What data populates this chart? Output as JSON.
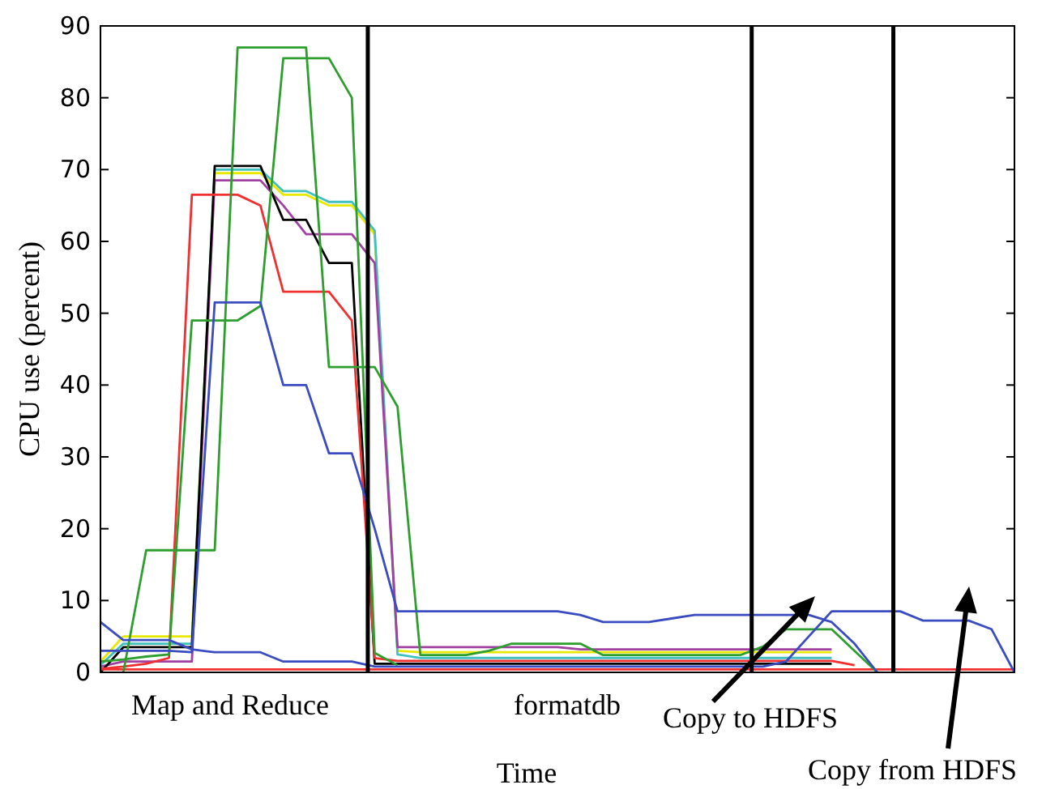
{
  "chart_data": {
    "type": "line",
    "xlabel": "Time",
    "ylabel": "CPU use (percent)",
    "categories": [
      null,
      null,
      null,
      null,
      null,
      null,
      null,
      null,
      null,
      null,
      null,
      null,
      null,
      null,
      null,
      null,
      null,
      null,
      null,
      null,
      null,
      null,
      null,
      null,
      null,
      null,
      null,
      null,
      null,
      null,
      null,
      null,
      null,
      null,
      null,
      null,
      null,
      null,
      null,
      null,
      null
    ],
    "ylim": [
      0,
      90
    ],
    "yticks": [
      0,
      10,
      20,
      30,
      40,
      50,
      60,
      70,
      80,
      90
    ],
    "grid": false,
    "marker": "none",
    "line_style": "solid",
    "series": [
      {
        "color": "#e8e800",
        "values": [
          1.5,
          5,
          5,
          5,
          5,
          69.5,
          69.5,
          69.5,
          66.5,
          66.5,
          65,
          65,
          61,
          3,
          2.8,
          2.8,
          2.8,
          2.8,
          2.8,
          2.8,
          2.8,
          2.8,
          2.8,
          2.8,
          2.8,
          2.8,
          2.8,
          2.8,
          2.8,
          2.8,
          2.8,
          2.8,
          2.8,
          null,
          null,
          null,
          null,
          null,
          null,
          null,
          null
        ]
      },
      {
        "color": "#40c0c0",
        "values": [
          1,
          4,
          4,
          4,
          4,
          70,
          70,
          70,
          67,
          67,
          65.5,
          65.5,
          61.5,
          2.5,
          2,
          2,
          2,
          2,
          2,
          2,
          2,
          2,
          2,
          2,
          2,
          2,
          2,
          2,
          2,
          2,
          2,
          2,
          2,
          null,
          null,
          null,
          null,
          null,
          null,
          null,
          null
        ]
      },
      {
        "color": "#a040a0",
        "values": [
          0.8,
          1.5,
          1.5,
          1.5,
          1.5,
          68.5,
          68.5,
          68.5,
          65,
          61,
          61,
          61,
          57,
          3.5,
          3.5,
          3.5,
          3.5,
          3.5,
          3.5,
          3.5,
          3.5,
          3.2,
          3.2,
          3.2,
          3.2,
          3.2,
          3.2,
          3.2,
          3.2,
          3.2,
          3.2,
          3.2,
          3.2,
          null,
          null,
          null,
          null,
          null,
          null,
          null,
          null
        ]
      },
      {
        "color": "#000000",
        "values": [
          0,
          3.5,
          3.5,
          3.5,
          3.5,
          70.5,
          70.5,
          70.5,
          63,
          63,
          57,
          57,
          1.2,
          1.2,
          1.2,
          1.2,
          1.2,
          1.2,
          1.2,
          1.2,
          1.2,
          1.2,
          1.2,
          1.2,
          1.2,
          1.2,
          1.2,
          1.2,
          1.2,
          1.2,
          1.2,
          1.2,
          1.2,
          null,
          null,
          null,
          null,
          null,
          null,
          null,
          null
        ]
      },
      {
        "color": "#f03030",
        "values": [
          0.5,
          0.8,
          1.2,
          2,
          66.5,
          66.5,
          66.5,
          65,
          53,
          53,
          53,
          49,
          2,
          1.6,
          1.6,
          1.6,
          1.6,
          1.6,
          1.6,
          1.6,
          1.6,
          1.6,
          1.6,
          1.6,
          1.6,
          1.6,
          1.6,
          1.6,
          1.6,
          1.6,
          1.6,
          1.6,
          1.6,
          1,
          null,
          null,
          null,
          null,
          null,
          null,
          null
        ]
      },
      {
        "color": "#f03030",
        "values": [
          0.4,
          0.4,
          0.4,
          0.4,
          0.4,
          0.4,
          0.4,
          0.4,
          0.4,
          0.4,
          0.4,
          0.4,
          0.4,
          0.4,
          0.4,
          0.4,
          0.4,
          0.4,
          0.4,
          0.4,
          0.4,
          0.4,
          0.4,
          0.4,
          0.4,
          0.4,
          0.4,
          0.4,
          0.4,
          0.4,
          0.4,
          0.4,
          0.4,
          0.4,
          0.4,
          0.4,
          0.4,
          0.4,
          0.4,
          0.4,
          0.4
        ]
      },
      {
        "color": "#2e9e2e",
        "values": [
          null,
          0,
          17,
          17,
          17,
          17,
          87,
          87,
          87,
          87,
          42.5,
          42.5,
          42.5,
          37,
          2.4,
          2.4,
          2.4,
          3,
          4,
          4,
          4,
          4,
          2.4,
          2.4,
          2.4,
          2.4,
          2.4,
          2.4,
          2.4,
          3.6,
          6,
          6,
          6,
          3,
          0,
          null,
          null,
          null,
          null,
          null,
          null
        ]
      },
      {
        "color": "#2e9e2e",
        "values": [
          1.5,
          1.8,
          2.2,
          2.5,
          49,
          49,
          49,
          51,
          85.5,
          85.5,
          85.5,
          80,
          2.7,
          1,
          null,
          null,
          null,
          null,
          null,
          null,
          null,
          null,
          null,
          null,
          null,
          null,
          null,
          null,
          null,
          null,
          null,
          null,
          null,
          null,
          null,
          null,
          null,
          null,
          null,
          null,
          null
        ]
      },
      {
        "color": "#3b4cc0",
        "values": [
          3,
          3,
          3,
          3,
          2.8,
          51.5,
          51.5,
          51.5,
          40,
          40,
          30.5,
          30.5,
          20,
          8.5,
          8.5,
          8.5,
          8.5,
          8.5,
          8.5,
          8.5,
          8.5,
          8,
          7,
          7,
          7,
          7.5,
          8,
          8,
          8,
          8,
          8,
          8,
          7,
          4,
          0,
          null,
          null,
          null,
          null,
          null,
          null
        ]
      },
      {
        "color": "#3b4cc0",
        "values": [
          7,
          4.5,
          4.5,
          4.5,
          3.2,
          2.8,
          2.8,
          2.8,
          1.5,
          1.5,
          1.5,
          1.5,
          0.8,
          0.8,
          0.8,
          0.8,
          0.8,
          0.8,
          0.8,
          0.8,
          0.8,
          0.8,
          0.8,
          0.8,
          0.8,
          0.8,
          0.8,
          0.8,
          0.8,
          0.8,
          1.5,
          5,
          8.5,
          8.5,
          8.5,
          8.5,
          7.2,
          7.2,
          7.2,
          6,
          0
        ]
      }
    ],
    "annotations": [
      "Map and Reduce",
      "formatdb",
      "Copy to HDFS",
      "Copy from HDFS"
    ]
  }
}
